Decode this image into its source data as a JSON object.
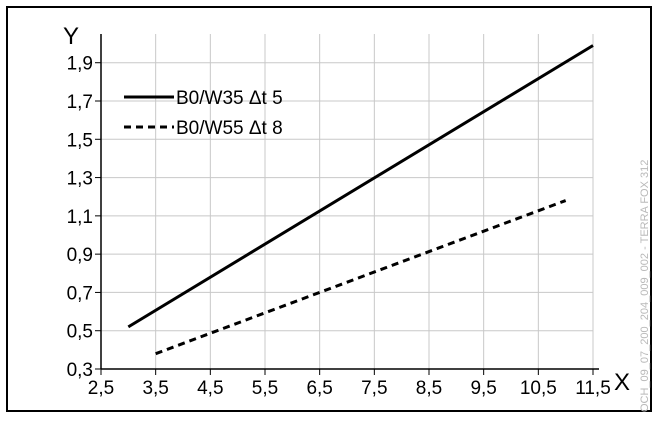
{
  "chart_data": {
    "type": "line",
    "xlabel": "X",
    "ylabel": "Y",
    "xlim": [
      2.5,
      11.5
    ],
    "ylim": [
      0.3,
      2.05
    ],
    "x_ticks": [
      "2,5",
      "3,5",
      "4,5",
      "5,5",
      "6,5",
      "7,5",
      "8,5",
      "9,5",
      "10,5",
      "11,5"
    ],
    "y_ticks": [
      "0,3",
      "0,5",
      "0,7",
      "0,9",
      "1,1",
      "1,3",
      "1,5",
      "1,7",
      "1,9"
    ],
    "grid": true,
    "legend_position": "top-left",
    "series": [
      {
        "name": "B0/W35 Δt 5",
        "style": "solid",
        "color": "#000000",
        "x": [
          3.0,
          11.5
        ],
        "y": [
          0.52,
          1.99
        ]
      },
      {
        "name": "B0/W55 Δt 8",
        "style": "dashed",
        "color": "#000000",
        "x": [
          3.5,
          11.0
        ],
        "y": [
          0.38,
          1.18
        ]
      }
    ],
    "watermark": "OCH_09_07_200_204_009_002 - TERRA FOX 312"
  }
}
